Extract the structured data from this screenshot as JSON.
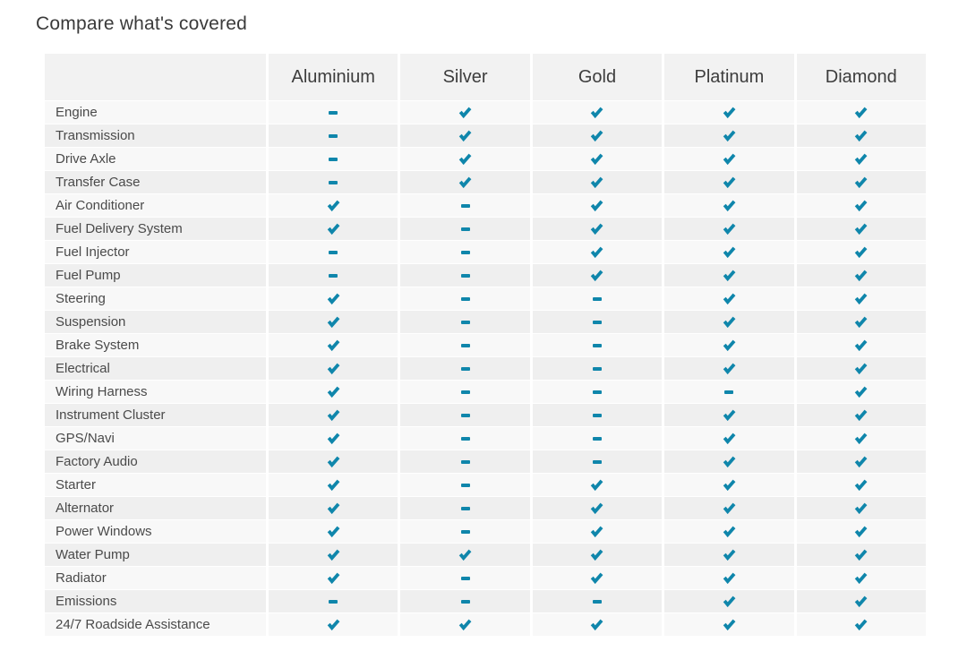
{
  "page": {
    "title": "Compare what's covered"
  },
  "colors": {
    "accent": "#0f86ab",
    "row_light": "#f8f8f8",
    "row_dark": "#efefef",
    "header_bg": "#f2f2f2"
  },
  "icons": {
    "check": "check-icon",
    "dash": "dash-icon"
  },
  "table": {
    "columns": [
      "Aluminium",
      "Silver",
      "Gold",
      "Platinum",
      "Diamond"
    ],
    "rows": [
      {
        "label": "Engine",
        "values": [
          "dash",
          "check",
          "check",
          "check",
          "check"
        ]
      },
      {
        "label": "Transmission",
        "values": [
          "dash",
          "check",
          "check",
          "check",
          "check"
        ]
      },
      {
        "label": "Drive Axle",
        "values": [
          "dash",
          "check",
          "check",
          "check",
          "check"
        ]
      },
      {
        "label": "Transfer Case",
        "values": [
          "dash",
          "check",
          "check",
          "check",
          "check"
        ]
      },
      {
        "label": "Air Conditioner",
        "values": [
          "check",
          "dash",
          "check",
          "check",
          "check"
        ]
      },
      {
        "label": "Fuel Delivery System",
        "values": [
          "check",
          "dash",
          "check",
          "check",
          "check"
        ]
      },
      {
        "label": "Fuel Injector",
        "values": [
          "dash",
          "dash",
          "check",
          "check",
          "check"
        ]
      },
      {
        "label": "Fuel Pump",
        "values": [
          "dash",
          "dash",
          "check",
          "check",
          "check"
        ]
      },
      {
        "label": "Steering",
        "values": [
          "check",
          "dash",
          "dash",
          "check",
          "check"
        ]
      },
      {
        "label": "Suspension",
        "values": [
          "check",
          "dash",
          "dash",
          "check",
          "check"
        ]
      },
      {
        "label": "Brake System",
        "values": [
          "check",
          "dash",
          "dash",
          "check",
          "check"
        ]
      },
      {
        "label": "Electrical",
        "values": [
          "check",
          "dash",
          "dash",
          "check",
          "check"
        ]
      },
      {
        "label": "Wiring Harness",
        "values": [
          "check",
          "dash",
          "dash",
          "dash",
          "check"
        ]
      },
      {
        "label": "Instrument Cluster",
        "values": [
          "check",
          "dash",
          "dash",
          "check",
          "check"
        ]
      },
      {
        "label": "GPS/Navi",
        "values": [
          "check",
          "dash",
          "dash",
          "check",
          "check"
        ]
      },
      {
        "label": "Factory Audio",
        "values": [
          "check",
          "dash",
          "dash",
          "check",
          "check"
        ]
      },
      {
        "label": "Starter",
        "values": [
          "check",
          "dash",
          "check",
          "check",
          "check"
        ]
      },
      {
        "label": "Alternator",
        "values": [
          "check",
          "dash",
          "check",
          "check",
          "check"
        ]
      },
      {
        "label": "Power Windows",
        "values": [
          "check",
          "dash",
          "check",
          "check",
          "check"
        ]
      },
      {
        "label": "Water Pump",
        "values": [
          "check",
          "check",
          "check",
          "check",
          "check"
        ]
      },
      {
        "label": "Radiator",
        "values": [
          "check",
          "dash",
          "check",
          "check",
          "check"
        ]
      },
      {
        "label": "Emissions",
        "values": [
          "dash",
          "dash",
          "dash",
          "check",
          "check"
        ]
      },
      {
        "label": "24/7 Roadside Assistance",
        "values": [
          "check",
          "check",
          "check",
          "check",
          "check"
        ]
      }
    ]
  }
}
